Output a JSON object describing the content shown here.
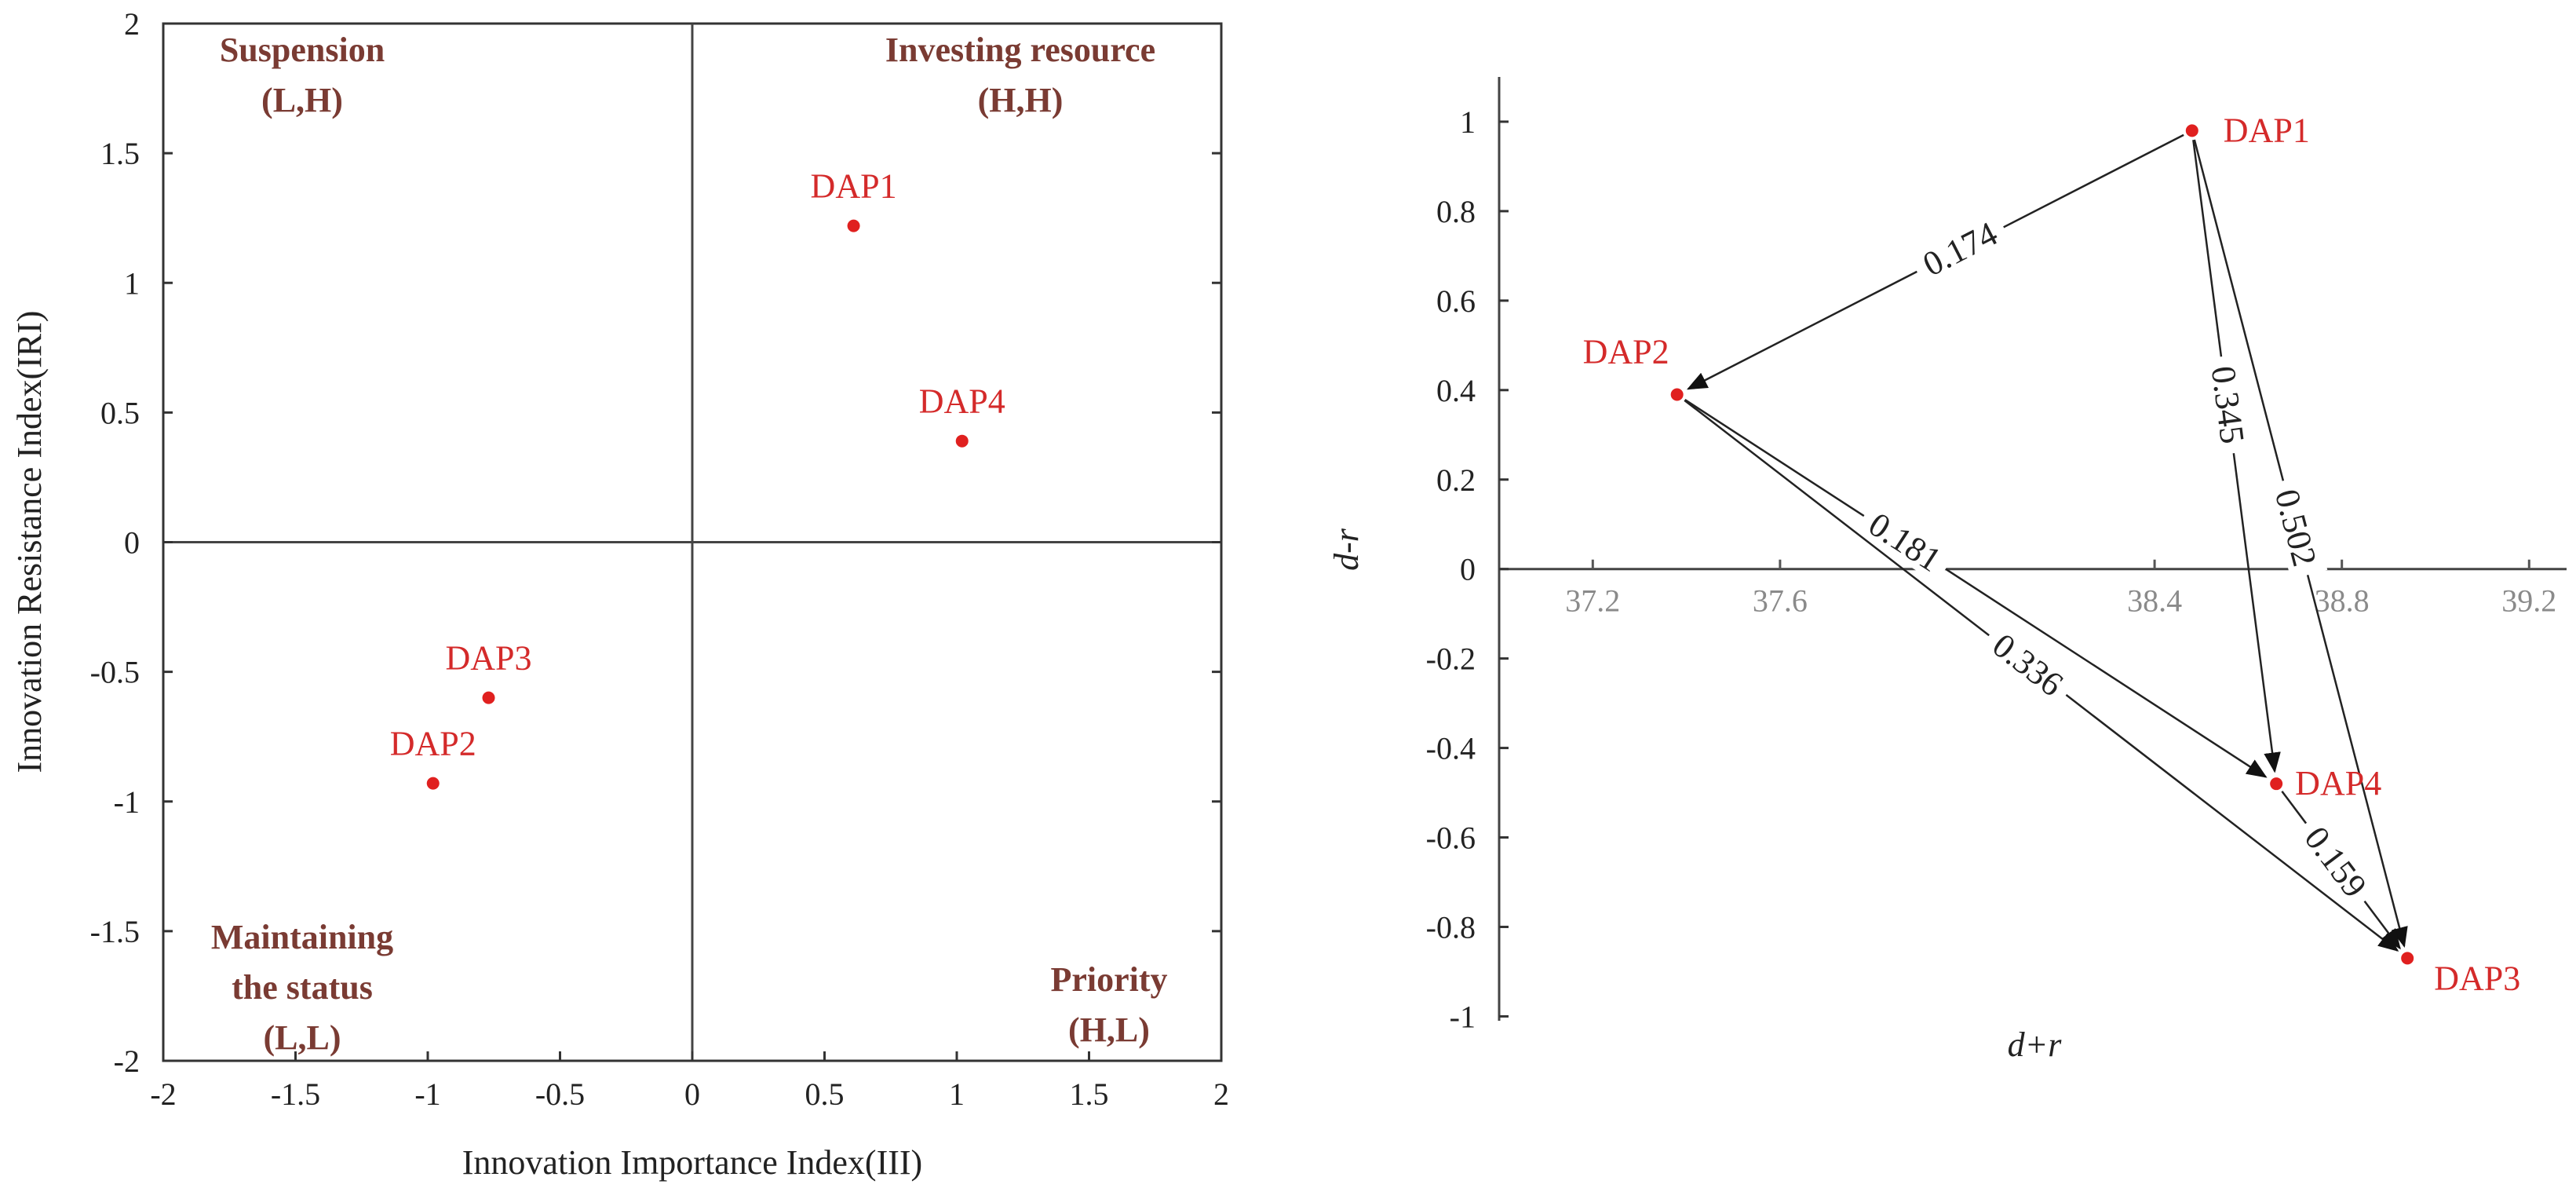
{
  "colors": {
    "point": "#e0201f",
    "quadrant_text": "#7a3b33",
    "axis": "#444444",
    "ink": "#222222",
    "gray_tick": "#8a8a8a"
  },
  "chart_data": [
    {
      "type": "scatter",
      "title": "",
      "xlabel": "Innovation Importance Index(III)",
      "ylabel": "Innovation Resistance Index(IRI)",
      "xlim": [
        -2,
        2
      ],
      "ylim": [
        -2,
        2
      ],
      "xticks": [
        "-2",
        "-1.5",
        "-1",
        "-0.5",
        "0",
        "0.5",
        "1",
        "1.5",
        "2"
      ],
      "yticks": [
        "2",
        "1.5",
        "1",
        "0.5",
        "0",
        "-0.5",
        "-1",
        "-1.5",
        "-2"
      ],
      "quadrants": {
        "top_left": {
          "title": "Suspension",
          "code": "(L,H)"
        },
        "top_right": {
          "title": "Investing resource",
          "code": "(H,H)"
        },
        "bottom_left": {
          "line1": "Maintaining",
          "line2": "the status",
          "code": "(L,L)"
        },
        "bottom_right": {
          "title": "Priority",
          "code": "(H,L)"
        }
      },
      "points": [
        {
          "name": "DAP1",
          "x": 0.61,
          "y": 1.22
        },
        {
          "name": "DAP4",
          "x": 1.02,
          "y": 0.39
        },
        {
          "name": "DAP3",
          "x": -0.77,
          "y": -0.6
        },
        {
          "name": "DAP2",
          "x": -0.98,
          "y": -0.93
        }
      ]
    },
    {
      "type": "scatter",
      "title": "",
      "xlabel": "d+r",
      "ylabel": "d-r",
      "xlim": [
        37.0,
        39.28
      ],
      "ylim": [
        -1.08,
        1.1
      ],
      "xticks": [
        "37.2",
        "37.6",
        "38.4",
        "38.8",
        "39.2"
      ],
      "yticks": [
        "1",
        "0.8",
        "0.6",
        "0.4",
        "0.2",
        "0",
        "-0.2",
        "-0.4",
        "-0.6",
        "-0.8",
        "-1"
      ],
      "points": [
        {
          "name": "DAP1",
          "x": 38.48,
          "y": 0.98
        },
        {
          "name": "DAP2",
          "x": 37.38,
          "y": 0.39
        },
        {
          "name": "DAP4",
          "x": 38.66,
          "y": -0.48
        },
        {
          "name": "DAP3",
          "x": 38.94,
          "y": -0.87
        }
      ],
      "edges": [
        {
          "from": "DAP1",
          "to": "DAP2",
          "weight": "0.174"
        },
        {
          "from": "DAP1",
          "to": "DAP4",
          "weight": "0.345"
        },
        {
          "from": "DAP1",
          "to": "DAP3",
          "weight": "0.502"
        },
        {
          "from": "DAP2",
          "to": "DAP4",
          "weight": "0.181"
        },
        {
          "from": "DAP2",
          "to": "DAP3",
          "weight": "0.336"
        },
        {
          "from": "DAP4",
          "to": "DAP3",
          "weight": "0.159"
        }
      ]
    }
  ]
}
